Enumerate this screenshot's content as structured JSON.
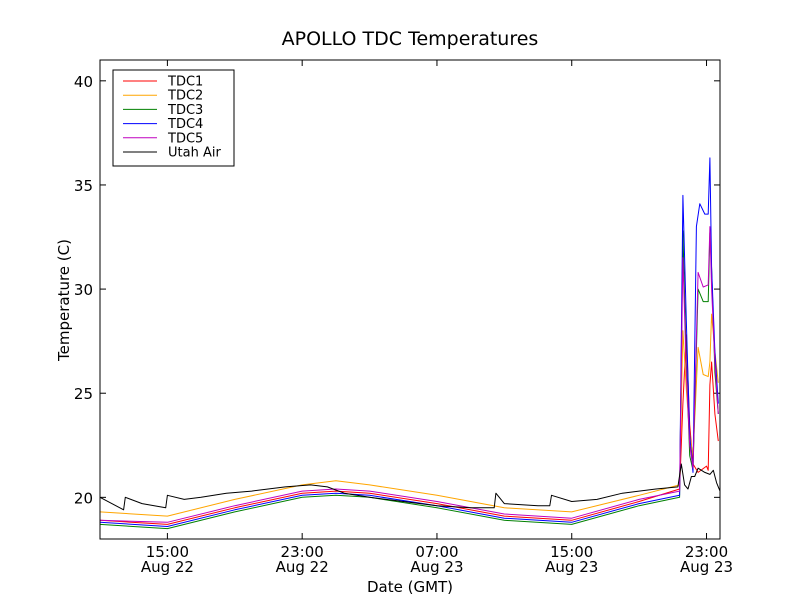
{
  "chart_data": {
    "type": "line",
    "title": "APOLLO TDC Temperatures",
    "xlabel": "Date (GMT)",
    "ylabel": "Temperature (C)",
    "xlim": [
      11,
      47.8
    ],
    "ylim": [
      18,
      41
    ],
    "grid": false,
    "legend_position": "top-left",
    "y_ticks": [
      20,
      25,
      30,
      35,
      40
    ],
    "x_ticks": [
      {
        "x": 15,
        "line1": "15:00",
        "line2": "Aug 22"
      },
      {
        "x": 23,
        "line1": "23:00",
        "line2": "Aug 22"
      },
      {
        "x": 31,
        "line1": "07:00",
        "line2": "Aug 23"
      },
      {
        "x": 39,
        "line1": "15:00",
        "line2": "Aug 23"
      },
      {
        "x": 47,
        "line1": "23:00",
        "line2": "Aug 23"
      }
    ],
    "series": [
      {
        "name": "TDC1",
        "color": "#ff0000",
        "points": [
          [
            11,
            18.9
          ],
          [
            15,
            18.7
          ],
          [
            19,
            19.5
          ],
          [
            23,
            20.2
          ],
          [
            25,
            20.3
          ],
          [
            27,
            20.2
          ],
          [
            31,
            19.7
          ],
          [
            35,
            19.1
          ],
          [
            39,
            18.9
          ],
          [
            43,
            19.8
          ],
          [
            45.4,
            20.4
          ],
          [
            45.6,
            24.5
          ],
          [
            45.8,
            27.8
          ],
          [
            46.0,
            23.5
          ],
          [
            46.2,
            21.6
          ],
          [
            46.5,
            21.2
          ],
          [
            47.0,
            21.5
          ],
          [
            47.1,
            21.3
          ],
          [
            47.2,
            25.4
          ],
          [
            47.3,
            26.5
          ],
          [
            47.5,
            24.0
          ],
          [
            47.7,
            22.7
          ]
        ]
      },
      {
        "name": "TDC2",
        "color": "#ffa500",
        "points": [
          [
            11,
            19.3
          ],
          [
            15,
            19.1
          ],
          [
            19,
            19.9
          ],
          [
            23,
            20.6
          ],
          [
            25,
            20.8
          ],
          [
            27,
            20.6
          ],
          [
            31,
            20.1
          ],
          [
            35,
            19.5
          ],
          [
            39,
            19.3
          ],
          [
            43,
            20.1
          ],
          [
            45.4,
            20.6
          ],
          [
            45.6,
            28.0
          ],
          [
            45.8,
            25.2
          ],
          [
            46.0,
            23.0
          ],
          [
            46.2,
            22.0
          ],
          [
            46.5,
            27.2
          ],
          [
            46.8,
            25.9
          ],
          [
            47.1,
            25.8
          ],
          [
            47.2,
            26.5
          ],
          [
            47.3,
            28.8
          ],
          [
            47.5,
            27.0
          ],
          [
            47.7,
            25.5
          ]
        ]
      },
      {
        "name": "TDC3",
        "color": "#008000",
        "points": [
          [
            11,
            18.7
          ],
          [
            15,
            18.5
          ],
          [
            19,
            19.3
          ],
          [
            23,
            20.0
          ],
          [
            25,
            20.1
          ],
          [
            27,
            20.0
          ],
          [
            31,
            19.5
          ],
          [
            35,
            18.9
          ],
          [
            39,
            18.7
          ],
          [
            43,
            19.6
          ],
          [
            45.4,
            20.0
          ],
          [
            45.6,
            32.8
          ],
          [
            45.8,
            26.5
          ],
          [
            46.0,
            22.0
          ],
          [
            46.2,
            21.3
          ],
          [
            46.5,
            30.0
          ],
          [
            46.8,
            29.4
          ],
          [
            47.1,
            29.4
          ],
          [
            47.2,
            32.7
          ],
          [
            47.3,
            31.0
          ],
          [
            47.5,
            26.0
          ],
          [
            47.7,
            24.0
          ]
        ]
      },
      {
        "name": "TDC4",
        "color": "#0000ff",
        "points": [
          [
            11,
            18.8
          ],
          [
            15,
            18.6
          ],
          [
            19,
            19.4
          ],
          [
            23,
            20.1
          ],
          [
            25,
            20.2
          ],
          [
            27,
            20.1
          ],
          [
            31,
            19.6
          ],
          [
            35,
            19.0
          ],
          [
            39,
            18.8
          ],
          [
            43,
            19.7
          ],
          [
            45.4,
            20.1
          ],
          [
            45.6,
            34.5
          ],
          [
            45.8,
            28.5
          ],
          [
            46.0,
            23.0
          ],
          [
            46.2,
            21.2
          ],
          [
            46.4,
            33.0
          ],
          [
            46.6,
            34.1
          ],
          [
            46.9,
            33.6
          ],
          [
            47.1,
            33.6
          ],
          [
            47.2,
            36.3
          ],
          [
            47.3,
            31.0
          ],
          [
            47.5,
            27.0
          ],
          [
            47.7,
            24.5
          ]
        ]
      },
      {
        "name": "TDC5",
        "color": "#bf00bf",
        "points": [
          [
            11,
            18.9
          ],
          [
            15,
            18.8
          ],
          [
            19,
            19.6
          ],
          [
            23,
            20.3
          ],
          [
            25,
            20.4
          ],
          [
            27,
            20.3
          ],
          [
            31,
            19.8
          ],
          [
            35,
            19.2
          ],
          [
            39,
            19.0
          ],
          [
            43,
            19.9
          ],
          [
            45.4,
            20.3
          ],
          [
            45.6,
            31.5
          ],
          [
            45.8,
            26.0
          ],
          [
            46.0,
            22.5
          ],
          [
            46.2,
            21.4
          ],
          [
            46.5,
            30.8
          ],
          [
            46.8,
            30.1
          ],
          [
            47.1,
            30.2
          ],
          [
            47.2,
            33.0
          ],
          [
            47.3,
            30.0
          ],
          [
            47.5,
            26.5
          ],
          [
            47.7,
            24.0
          ]
        ]
      },
      {
        "name": "Utah Air",
        "color": "#000000",
        "points": [
          [
            11,
            20.0
          ],
          [
            12.4,
            19.4
          ],
          [
            12.5,
            20.0
          ],
          [
            13.5,
            19.7
          ],
          [
            14.9,
            19.5
          ],
          [
            15.0,
            20.1
          ],
          [
            16,
            19.9
          ],
          [
            17,
            20.0
          ],
          [
            18.5,
            20.2
          ],
          [
            20,
            20.3
          ],
          [
            22,
            20.5
          ],
          [
            23.5,
            20.6
          ],
          [
            24.5,
            20.5
          ],
          [
            25.5,
            20.2
          ],
          [
            27,
            20.0
          ],
          [
            29,
            19.8
          ],
          [
            31,
            19.6
          ],
          [
            33,
            19.5
          ],
          [
            34.4,
            19.5
          ],
          [
            34.5,
            20.2
          ],
          [
            35,
            19.7
          ],
          [
            37,
            19.6
          ],
          [
            37.7,
            19.6
          ],
          [
            37.8,
            20.1
          ],
          [
            39,
            19.8
          ],
          [
            40.5,
            19.9
          ],
          [
            42,
            20.2
          ],
          [
            44,
            20.4
          ],
          [
            45.3,
            20.5
          ],
          [
            45.5,
            21.6
          ],
          [
            45.7,
            20.6
          ],
          [
            45.9,
            20.4
          ],
          [
            46.1,
            21.0
          ],
          [
            46.3,
            21.0
          ],
          [
            46.5,
            21.4
          ],
          [
            46.9,
            21.2
          ],
          [
            47.2,
            21.1
          ],
          [
            47.4,
            21.3
          ],
          [
            47.6,
            20.7
          ],
          [
            47.8,
            20.3
          ]
        ]
      }
    ]
  }
}
